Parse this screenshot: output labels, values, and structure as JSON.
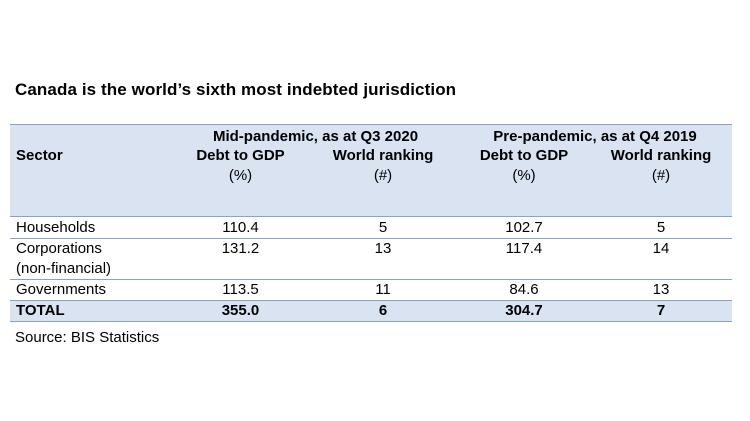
{
  "title": "Canada is the world’s sixth most indebted jurisdiction",
  "table": {
    "groups": [
      "Mid-pandemic, as at Q3 2020",
      "Pre-pandemic, as at Q4 2019"
    ],
    "headers": {
      "sector": "Sector",
      "debt": "Debt to GDP",
      "debt_unit": "(%)",
      "rank": "World ranking",
      "rank_unit": "(#)"
    },
    "rows": [
      {
        "name": "Households",
        "name2": "",
        "mid_debt": "110.4",
        "mid_rank": "5",
        "pre_debt": "102.7",
        "pre_rank": "5"
      },
      {
        "name": "Corporations",
        "name2": "(non-financial)",
        "mid_debt": "131.2",
        "mid_rank": "13",
        "pre_debt": "117.4",
        "pre_rank": "14"
      },
      {
        "name": "Governments",
        "name2": "",
        "mid_debt": "113.5",
        "mid_rank": "11",
        "pre_debt": "84.6",
        "pre_rank": "13"
      }
    ],
    "total": {
      "name": "TOTAL",
      "mid_debt": "355.0",
      "mid_rank": "6",
      "pre_debt": "304.7",
      "pre_rank": "7"
    }
  },
  "source": "Source: BIS Statistics",
  "colors": {
    "header_bg": "#d9e3f1",
    "rule": "#8aa3c4"
  }
}
